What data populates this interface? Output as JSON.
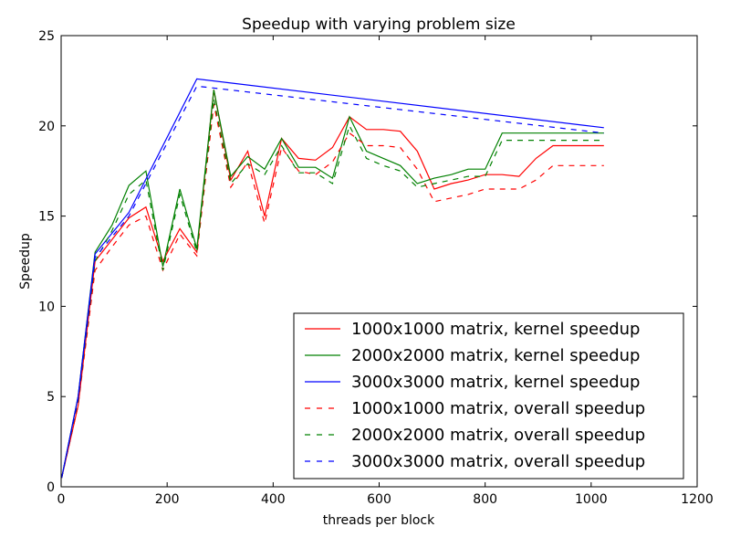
{
  "chart_data": {
    "type": "line",
    "title": "Speedup with varying problem size",
    "xlabel": "threads per block",
    "ylabel": "Speedup",
    "xlim": [
      0,
      1200
    ],
    "ylim": [
      0,
      25
    ],
    "xticks": [
      0,
      200,
      400,
      600,
      800,
      1000,
      1200
    ],
    "yticks": [
      0,
      5,
      10,
      15,
      20,
      25
    ],
    "grid": false,
    "legend_position": "lower-right",
    "series": [
      {
        "name": "1000x1000 matrix, kernel speedup",
        "color": "#ff0000",
        "linestyle": "solid",
        "x": [
          1,
          32,
          64,
          96,
          128,
          160,
          192,
          224,
          256,
          288,
          320,
          352,
          384,
          416,
          448,
          480,
          512,
          544,
          576,
          608,
          640,
          672,
          704,
          736,
          768,
          800,
          832,
          864,
          896,
          928,
          960,
          992,
          1024
        ],
        "y": [
          0.5,
          4.5,
          12.5,
          13.7,
          14.9,
          15.5,
          12.5,
          14.3,
          13.0,
          22.0,
          17.0,
          18.6,
          15.0,
          19.3,
          18.2,
          18.1,
          18.8,
          20.5,
          19.8,
          19.8,
          19.7,
          18.6,
          16.5,
          16.8,
          17.0,
          17.3,
          17.3,
          17.2,
          18.2,
          18.9,
          18.9,
          18.9,
          18.9
        ]
      },
      {
        "name": "2000x2000 matrix, kernel speedup",
        "color": "#008000",
        "linestyle": "solid",
        "x": [
          1,
          32,
          64,
          96,
          128,
          160,
          192,
          224,
          256,
          288,
          320,
          352,
          384,
          416,
          448,
          480,
          512,
          544,
          576,
          608,
          640,
          672,
          704,
          736,
          768,
          800,
          832,
          864,
          896,
          928,
          960,
          992,
          1024
        ],
        "y": [
          0.5,
          5.0,
          13.0,
          14.5,
          16.7,
          17.5,
          12.2,
          16.5,
          13.2,
          22.0,
          17.2,
          18.3,
          17.6,
          19.3,
          17.7,
          17.7,
          17.1,
          20.5,
          18.6,
          18.2,
          17.8,
          16.8,
          17.1,
          17.3,
          17.6,
          17.6,
          19.6,
          19.6,
          19.6,
          19.6,
          19.6,
          19.6,
          19.6
        ]
      },
      {
        "name": "3000x3000 matrix, kernel speedup",
        "color": "#0000ff",
        "linestyle": "solid",
        "x": [
          1,
          32,
          64,
          128,
          256,
          1024
        ],
        "y": [
          0.5,
          5.0,
          12.9,
          15.2,
          22.6,
          19.9
        ]
      },
      {
        "name": "1000x1000 matrix, overall speedup",
        "color": "#ff0000",
        "linestyle": "dashed",
        "x": [
          1,
          32,
          64,
          96,
          128,
          160,
          192,
          224,
          256,
          288,
          320,
          352,
          384,
          416,
          448,
          480,
          512,
          544,
          576,
          608,
          640,
          672,
          704,
          736,
          768,
          800,
          832,
          864,
          896,
          928,
          960,
          992,
          1024
        ],
        "y": [
          0.5,
          4.5,
          12.0,
          13.3,
          14.5,
          15.0,
          12.0,
          14.0,
          12.8,
          21.2,
          16.6,
          18.0,
          14.6,
          18.8,
          17.5,
          17.3,
          18.0,
          19.6,
          18.9,
          18.9,
          18.8,
          17.6,
          15.8,
          16.0,
          16.2,
          16.5,
          16.5,
          16.5,
          17.0,
          17.8,
          17.8,
          17.8,
          17.8
        ]
      },
      {
        "name": "2000x2000 matrix, overall speedup",
        "color": "#008000",
        "linestyle": "dashed",
        "x": [
          1,
          32,
          64,
          96,
          128,
          160,
          192,
          224,
          256,
          288,
          320,
          352,
          384,
          416,
          448,
          480,
          512,
          544,
          576,
          608,
          640,
          672,
          704,
          736,
          768,
          800,
          832,
          864,
          896,
          928,
          960,
          992,
          1024
        ],
        "y": [
          0.5,
          4.8,
          12.5,
          14.2,
          16.2,
          17.0,
          12.0,
          16.2,
          13.0,
          21.5,
          16.8,
          17.9,
          17.3,
          18.9,
          17.4,
          17.4,
          16.8,
          20.0,
          18.2,
          17.8,
          17.5,
          16.6,
          16.8,
          17.0,
          17.2,
          17.2,
          19.2,
          19.2,
          19.2,
          19.2,
          19.2,
          19.2,
          19.2
        ]
      },
      {
        "name": "3000x3000 matrix, overall speedup",
        "color": "#0000ff",
        "linestyle": "dashed",
        "x": [
          1,
          32,
          64,
          128,
          256,
          1024
        ],
        "y": [
          0.5,
          4.9,
          12.7,
          15.0,
          22.2,
          19.6
        ]
      }
    ]
  }
}
